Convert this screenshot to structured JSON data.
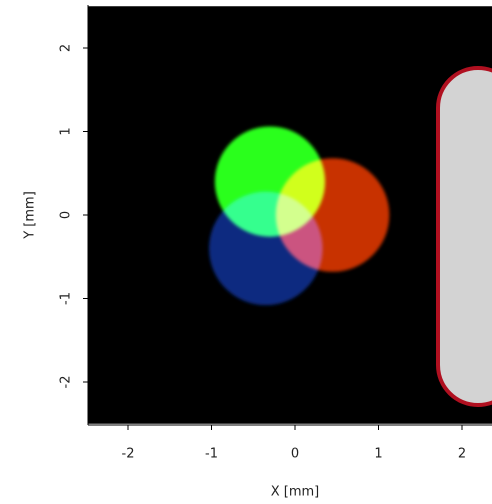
{
  "chart_data": {
    "type": "image",
    "xlabel": "X [mm]",
    "ylabel": "Y [mm]",
    "xlim": [
      -2.5,
      2.5
    ],
    "ylim": [
      -2.5,
      2.5
    ],
    "xticks": [
      -2,
      -1,
      0,
      1,
      2
    ],
    "yticks": [
      -2,
      -1,
      0,
      1,
      2
    ],
    "background": "#000000",
    "circles": [
      {
        "color": "#2cff1c",
        "x": -0.3,
        "y": 0.4,
        "r": 0.66
      },
      {
        "color": "#c83200",
        "x": 0.45,
        "y": 0,
        "r": 0.68
      },
      {
        "color": "#0a2a80",
        "x": -0.35,
        "y": -0.4,
        "r": 0.68
      }
    ]
  }
}
